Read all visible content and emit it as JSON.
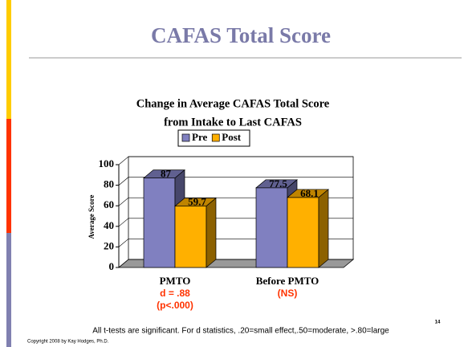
{
  "slide_title": "CAFAS Total Score",
  "chart_data": {
    "type": "bar3d",
    "title": [
      "Change in Average CAFAS Total Score",
      "from Intake to Last CAFAS"
    ],
    "y_label": "Average Score",
    "categories": [
      "PMTO",
      "Before PMTO"
    ],
    "series": [
      {
        "name": "Pre",
        "color": "#8080c0",
        "values": [
          87,
          77.5
        ]
      },
      {
        "name": "Post",
        "color": "#ffb000",
        "values": [
          59.7,
          68.1
        ]
      }
    ],
    "ylim": [
      0,
      100
    ],
    "yticks": [
      0,
      20,
      40,
      60,
      80,
      100
    ],
    "grid": true,
    "annotations": [
      [
        "d = .88",
        "(p<.000)"
      ],
      [
        "(NS)"
      ]
    ]
  },
  "footnote": "All t-tests are significant. For d statistics, .20=small effect,.50=moderate, >.80=large",
  "copyright": "Copyright 2008 by Kay Hodges, Ph.D.",
  "page_number": "14"
}
